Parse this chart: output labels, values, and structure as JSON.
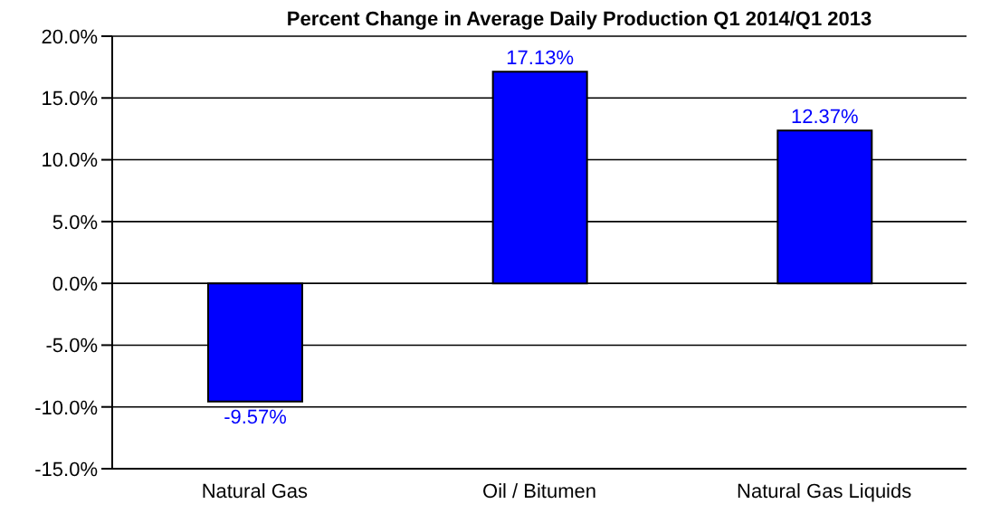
{
  "chart_data": {
    "type": "bar",
    "title": "Percent Change in Average Daily Production Q1 2014/Q1 2013",
    "categories": [
      "Natural Gas",
      "Oil / Bitumen",
      "Natural Gas Liquids"
    ],
    "values": [
      -9.57,
      17.13,
      12.37
    ],
    "value_labels": [
      "-9.57%",
      "17.13%",
      "12.37%"
    ],
    "color": "#0000ff",
    "ylim": [
      -15,
      20
    ],
    "yticks": [
      {
        "value": -15,
        "label": "-15.0%"
      },
      {
        "value": -10,
        "label": "-10.0%"
      },
      {
        "value": -5,
        "label": "-5.0%"
      },
      {
        "value": 0,
        "label": "0.0%"
      },
      {
        "value": 5,
        "label": "5.0%"
      },
      {
        "value": 10,
        "label": "10.0%"
      },
      {
        "value": 15,
        "label": "15.0%"
      },
      {
        "value": 20,
        "label": "20.0%"
      }
    ],
    "grid": "y",
    "legend": false
  }
}
